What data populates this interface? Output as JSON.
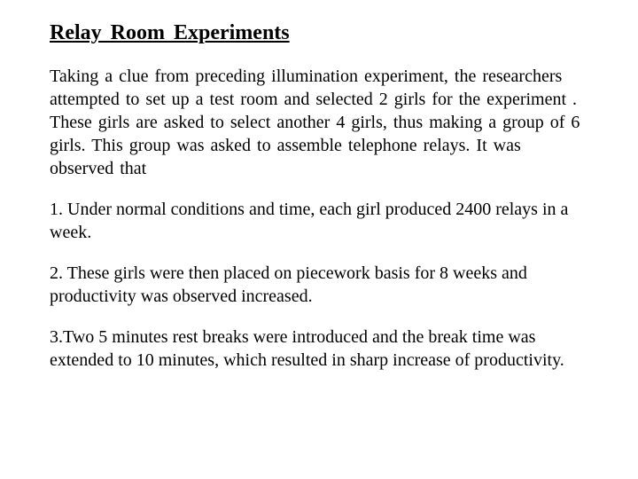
{
  "title": "Relay  Room  Experiments",
  "intro": "Taking  a  clue from  preceding  illumination  experiment,  the researchers  attempted  to  set  up  a  test  room  and  selected  2  girls  for  the  experiment . These girls are asked to select another 4 girls, thus making a group of  6 girls. This group was asked to assemble telephone  relays.  It was observed that",
  "points": [
    "1.  Under normal conditions and time, each girl produced 2400 relays in a week.",
    "2.     These girls were then placed on piecework basis for 8 weeks and productivity was observed increased.",
    "3.Two 5 minutes rest breaks were introduced and the break time was extended to 10 minutes, which resulted in sharp increase of productivity."
  ],
  "colors": {
    "text": "#000000",
    "background": "#ffffff"
  },
  "typography": {
    "family": "Times New Roman",
    "title_size": 24,
    "body_size": 20
  }
}
